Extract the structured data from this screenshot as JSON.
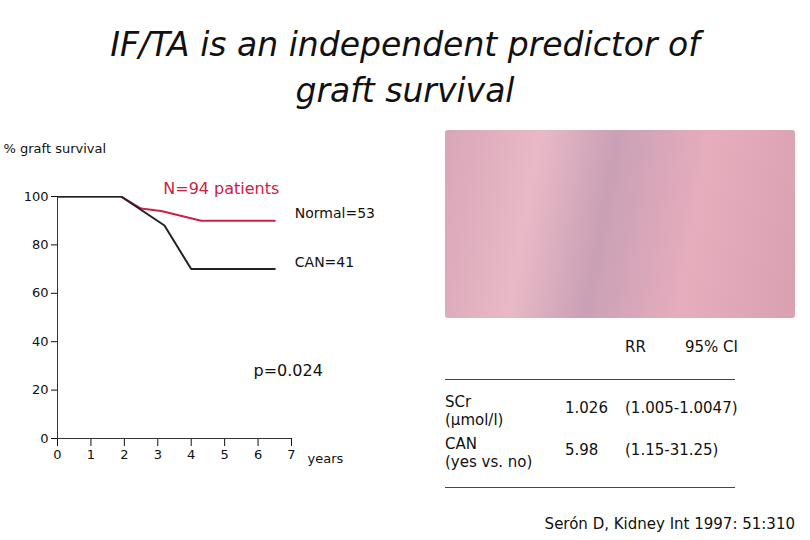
{
  "title": [
    "IF/TA is an independent predictor of",
    "graft survival"
  ],
  "chart_data": {
    "type": "line",
    "ylabel": "% graft survival",
    "xlabel": "years",
    "xlim": [
      0,
      7
    ],
    "xticks": [
      0,
      1,
      2,
      3,
      4,
      5,
      6,
      7
    ],
    "ylim": [
      0,
      100
    ],
    "yticks": [
      0,
      20,
      40,
      60,
      80,
      100
    ],
    "series": [
      {
        "name": "Normal=53",
        "color": "#cc2244",
        "x": [
          0,
          1.9,
          2.5,
          3.1,
          4.3,
          6.5
        ],
        "values": [
          100,
          100,
          95,
          94,
          90,
          90
        ]
      },
      {
        "name": "CAN=41",
        "color": "#222222",
        "x": [
          0,
          1.9,
          3.2,
          4,
          6.5
        ],
        "values": [
          100,
          100,
          88,
          70,
          70
        ]
      }
    ],
    "annotations": [
      {
        "text": "N=94 patients",
        "x": 4.9,
        "y": 103,
        "color": "#cc2244"
      },
      {
        "text": "p=0.024",
        "x": 6.9,
        "y": 28,
        "color": "#111111"
      }
    ]
  },
  "table": {
    "columns": [
      "RR",
      "95% CI"
    ],
    "rows": [
      {
        "label": [
          "SCr",
          "(μmol/l)"
        ],
        "values": [
          "1.026",
          "(1.005-1.0047)"
        ]
      },
      {
        "label": [
          "CAN",
          "(yes vs. no)"
        ],
        "values": [
          "5.98",
          "(1.15-31.25)"
        ]
      }
    ]
  },
  "citation": "Serón D, Kidney Int 1997: 51:310"
}
